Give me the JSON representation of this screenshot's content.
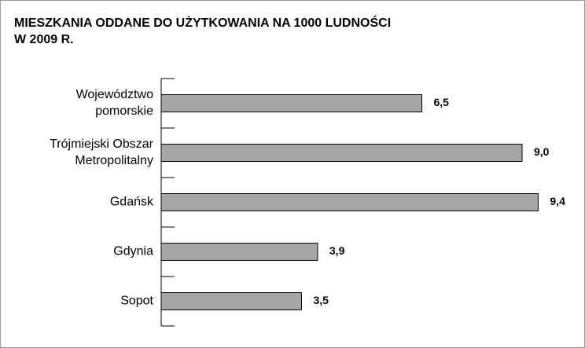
{
  "chart_data": {
    "type": "barh",
    "title": [
      "MIESZKANIA ODDANE DO UŻYTKOWANIA NA 1000 LUDNOŚCI",
      "W 2009 R."
    ],
    "categories": [
      [
        "Województwo",
        "pomorskie"
      ],
      [
        "Trójmiejski Obszar",
        "Metropolitalny"
      ],
      [
        "Gdańsk"
      ],
      [
        "Gdynia"
      ],
      [
        "Sopot"
      ]
    ],
    "values": [
      6.5,
      9.0,
      9.4,
      3.9,
      3.5
    ],
    "value_labels": [
      "6,5",
      "9,0",
      "9,4",
      "3,9",
      "3,5"
    ],
    "color": "#a6a6a6",
    "xlim": [
      0,
      10
    ]
  }
}
